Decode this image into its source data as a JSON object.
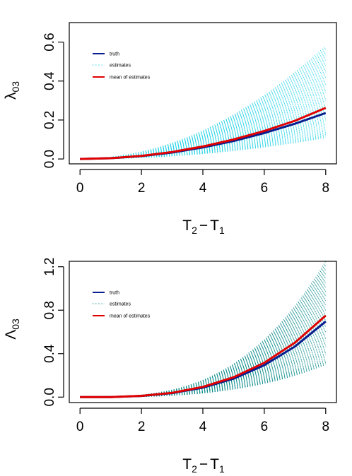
{
  "chart_data": [
    {
      "type": "line",
      "xlabel": "T₂ − T₁",
      "ylabel": "λ₀₃",
      "ylabel_main": "λ",
      "ylabel_sub": "03",
      "xlabel_main1": "T",
      "xlabel_sub1": "2",
      "xlabel_op": "−",
      "xlabel_main2": "T",
      "xlabel_sub2": "1",
      "xlim": [
        -0.35,
        8.35
      ],
      "ylim": [
        -0.025,
        0.7
      ],
      "xticks": [
        0,
        2,
        4,
        6,
        8
      ],
      "xtick_labels": [
        "0",
        "2",
        "4",
        "6",
        "8"
      ],
      "yticks": [
        0.0,
        0.2,
        0.4,
        0.6
      ],
      "ytick_labels": [
        "0.0",
        "0.2",
        "0.4",
        "0.6"
      ],
      "legend_position": "top-left",
      "legend": [
        "truth",
        "estimates",
        "mean of estimates"
      ],
      "series": [
        {
          "name": "truth",
          "x": [
            0,
            1,
            2,
            3,
            4,
            5,
            6,
            7,
            8
          ],
          "values": [
            0.0,
            0.004,
            0.015,
            0.033,
            0.059,
            0.092,
            0.133,
            0.181,
            0.236
          ],
          "color": "#0a1f8f",
          "style": "solid"
        },
        {
          "name": "mean of estimates",
          "x": [
            0,
            1,
            2,
            3,
            4,
            5,
            6,
            7,
            8
          ],
          "values": [
            0.0,
            0.004,
            0.016,
            0.036,
            0.064,
            0.1,
            0.144,
            0.196,
            0.262
          ],
          "color": "#e00000",
          "style": "solid"
        },
        {
          "name": "estimates",
          "color": "#27d3e8",
          "style": "dotted",
          "count": 60,
          "endpoint_range": [
            0.11,
            0.58
          ],
          "exponent": 2
        }
      ]
    },
    {
      "type": "line",
      "xlabel": "T₂ − T₁",
      "ylabel": "Λ₀₃",
      "ylabel_main": "Λ",
      "ylabel_sub": "03",
      "xlabel_main1": "T",
      "xlabel_sub1": "2",
      "xlabel_op": "−",
      "xlabel_main2": "T",
      "xlabel_sub2": "1",
      "xlim": [
        -0.35,
        8.35
      ],
      "ylim": [
        -0.05,
        1.25
      ],
      "xticks": [
        0,
        2,
        4,
        6,
        8
      ],
      "xtick_labels": [
        "0",
        "2",
        "4",
        "6",
        "8"
      ],
      "yticks": [
        0.0,
        0.4,
        0.8,
        1.2
      ],
      "ytick_labels": [
        "0.0",
        "0.4",
        "0.8",
        "1.2"
      ],
      "legend_position": "top-left",
      "legend": [
        "truth",
        "estimates",
        "mean of estimates"
      ],
      "series": [
        {
          "name": "truth",
          "x": [
            0,
            1,
            2,
            3,
            4,
            5,
            6,
            7,
            8
          ],
          "values": [
            0.0,
            0.001,
            0.011,
            0.037,
            0.087,
            0.17,
            0.294,
            0.466,
            0.696
          ],
          "color": "#0a1f8f",
          "style": "solid"
        },
        {
          "name": "mean of estimates",
          "x": [
            0,
            1,
            2,
            3,
            4,
            5,
            6,
            7,
            8
          ],
          "values": [
            0.0,
            0.001,
            0.012,
            0.04,
            0.094,
            0.183,
            0.316,
            0.502,
            0.75
          ],
          "color": "#e00000",
          "style": "solid"
        },
        {
          "name": "estimates",
          "color": "#0e8c8c",
          "style": "dotted",
          "count": 60,
          "endpoint_range": [
            0.3,
            1.25
          ],
          "exponent": 3
        }
      ]
    }
  ]
}
